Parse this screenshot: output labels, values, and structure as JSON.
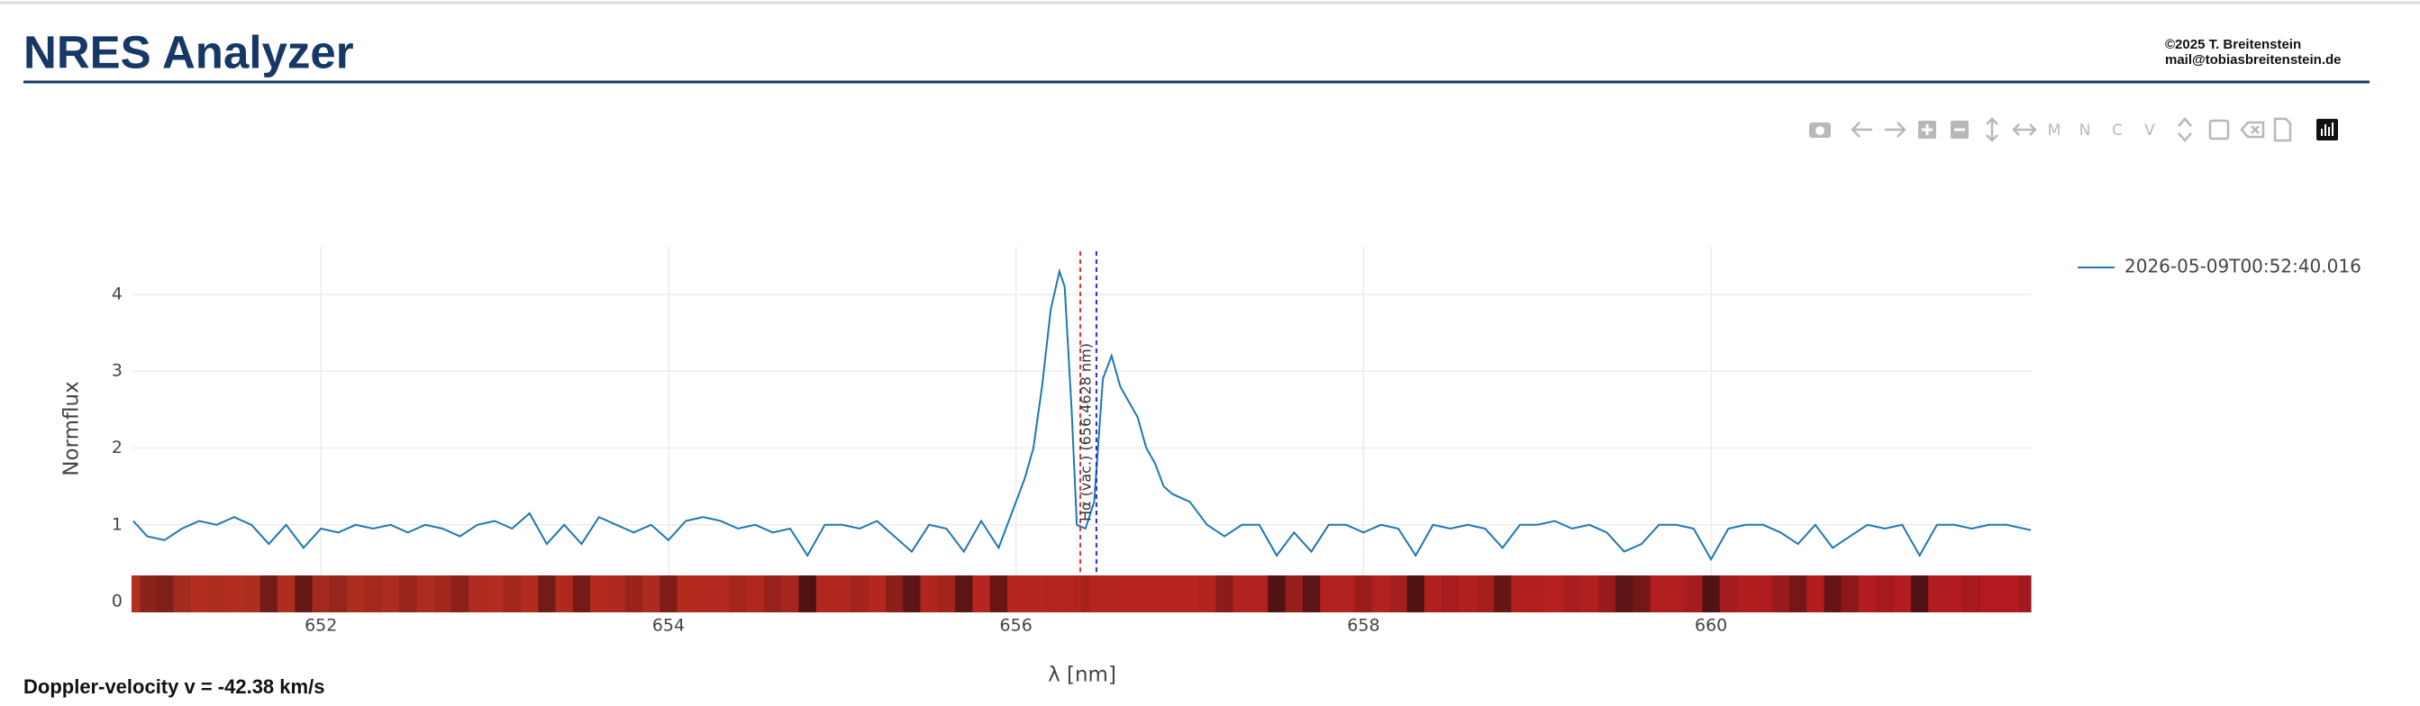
{
  "header": {
    "title": "NRES Analyzer",
    "copyright": "©2025 T. Breitenstein",
    "email": "mail@tobiasbreitenstein.de"
  },
  "toolbar": {
    "labels": [
      "M",
      "N",
      "C",
      "V"
    ]
  },
  "chart_data": {
    "type": "line",
    "xlabel": "λ [nm]",
    "ylabel": "Normflux",
    "x": [
      650.92,
      651.0,
      651.1,
      651.2,
      651.3,
      651.4,
      651.5,
      651.6,
      651.7,
      651.8,
      651.9,
      652.0,
      652.1,
      652.2,
      652.3,
      652.4,
      652.5,
      652.6,
      652.7,
      652.8,
      652.9,
      653.0,
      653.1,
      653.2,
      653.3,
      653.4,
      653.5,
      653.6,
      653.7,
      653.8,
      653.9,
      654.0,
      654.1,
      654.2,
      654.3,
      654.4,
      654.5,
      654.6,
      654.7,
      654.8,
      654.9,
      655.0,
      655.1,
      655.2,
      655.3,
      655.4,
      655.5,
      655.6,
      655.7,
      655.8,
      655.9,
      656.0,
      656.05,
      656.1,
      656.15,
      656.2,
      656.25,
      656.28,
      656.32,
      656.35,
      656.4,
      656.45,
      656.5,
      656.55,
      656.6,
      656.65,
      656.7,
      656.75,
      656.8,
      656.85,
      656.9,
      657.0,
      657.1,
      657.2,
      657.3,
      657.4,
      657.5,
      657.6,
      657.7,
      657.8,
      657.9,
      658.0,
      658.1,
      658.2,
      658.3,
      658.4,
      658.5,
      658.6,
      658.7,
      658.8,
      658.9,
      659.0,
      659.1,
      659.2,
      659.3,
      659.4,
      659.5,
      659.6,
      659.7,
      659.8,
      659.9,
      660.0,
      660.1,
      660.2,
      660.3,
      660.4,
      660.5,
      660.6,
      660.7,
      660.8,
      660.9,
      661.0,
      661.1,
      661.2,
      661.3,
      661.4,
      661.5,
      661.6,
      661.7,
      661.84
    ],
    "series": [
      {
        "name": "2026-05-09T00:52:40.016",
        "color": "#1f77b4",
        "values": [
          1.05,
          0.85,
          0.8,
          0.95,
          1.05,
          1.0,
          1.1,
          1.0,
          0.75,
          1.0,
          0.7,
          0.95,
          0.9,
          1.0,
          0.95,
          1.0,
          0.9,
          1.0,
          0.95,
          0.85,
          1.0,
          1.05,
          0.95,
          1.15,
          0.75,
          1.0,
          0.75,
          1.1,
          1.0,
          0.9,
          1.0,
          0.8,
          1.05,
          1.1,
          1.05,
          0.95,
          1.0,
          0.9,
          0.95,
          0.6,
          1.0,
          1.0,
          0.95,
          1.05,
          0.85,
          0.65,
          1.0,
          0.95,
          0.65,
          1.05,
          0.7,
          1.3,
          1.6,
          2.0,
          2.8,
          3.8,
          4.3,
          4.1,
          2.5,
          1.0,
          0.95,
          1.3,
          2.9,
          3.2,
          2.8,
          2.6,
          2.4,
          2.0,
          1.8,
          1.5,
          1.4,
          1.3,
          1.0,
          0.85,
          1.0,
          1.0,
          0.6,
          0.9,
          0.65,
          1.0,
          1.0,
          0.9,
          1.0,
          0.95,
          0.6,
          1.0,
          0.95,
          1.0,
          0.95,
          0.7,
          1.0,
          1.0,
          1.05,
          0.95,
          1.0,
          0.9,
          0.65,
          0.75,
          1.0,
          1.0,
          0.95,
          0.55,
          0.95,
          1.0,
          1.0,
          0.9,
          0.75,
          1.0,
          0.7,
          0.85,
          1.0,
          0.95,
          1.0,
          0.6,
          1.0,
          1.0,
          0.95,
          1.0,
          1.0,
          0.93
        ]
      }
    ],
    "xlim": [
      650.91,
      661.84
    ],
    "ylim": [
      -0.14,
      4.62
    ],
    "xticks": [
      652,
      654,
      656,
      658,
      660
    ],
    "yticks": [
      0,
      1,
      2,
      3,
      4
    ],
    "grid": true,
    "legend": "right",
    "reference_lines": [
      {
        "x": 656.37,
        "color": "#e0303a"
      },
      {
        "x": 656.4628,
        "color": "#2a2ad8",
        "label": "Hα (vac.) (656.4628 nm)"
      }
    ]
  },
  "footer": {
    "doppler": "Doppler-velocity v = -42.38 km/s"
  }
}
